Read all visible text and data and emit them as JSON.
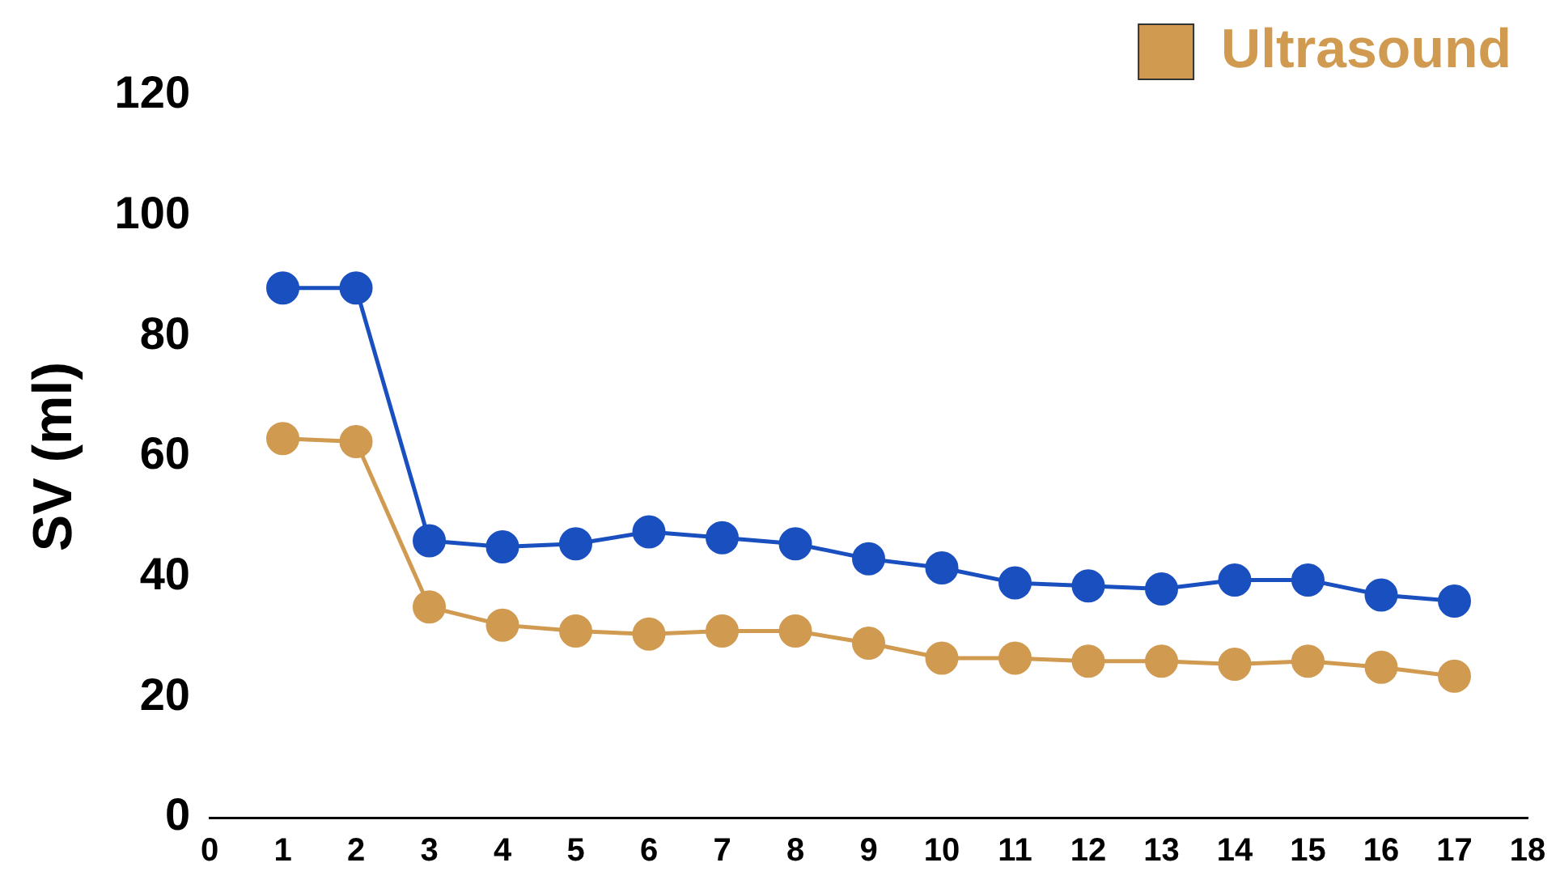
{
  "chart_data": {
    "type": "line",
    "ylabel": "SV (ml)",
    "x": [
      1,
      2,
      3,
      4,
      5,
      6,
      7,
      8,
      9,
      10,
      11,
      12,
      13,
      14,
      15,
      16,
      17
    ],
    "series": [
      {
        "color": "#1a4fbf",
        "values": [
          88,
          88,
          46,
          45,
          45.5,
          47.5,
          46.5,
          45.5,
          43,
          41.5,
          39,
          38.5,
          38,
          39.5,
          39.5,
          37,
          36
        ]
      },
      {
        "name": "Ultrasound",
        "color": "#d09a50",
        "values": [
          63,
          62.5,
          35,
          32,
          31,
          30.5,
          31,
          31,
          29,
          26.5,
          26.5,
          26,
          26,
          25.5,
          26,
          25,
          23.5
        ]
      }
    ],
    "xlim": [
      0,
      18
    ],
    "xticks": [
      0,
      1,
      2,
      3,
      4,
      5,
      6,
      7,
      8,
      9,
      10,
      11,
      12,
      13,
      14,
      15,
      16,
      17,
      18
    ],
    "ylim": [
      0,
      120
    ],
    "yticks": [
      0,
      20,
      40,
      60,
      80,
      100,
      120
    ],
    "grid": false,
    "legend": "top right",
    "marker": "circle",
    "line_style": "solid"
  }
}
